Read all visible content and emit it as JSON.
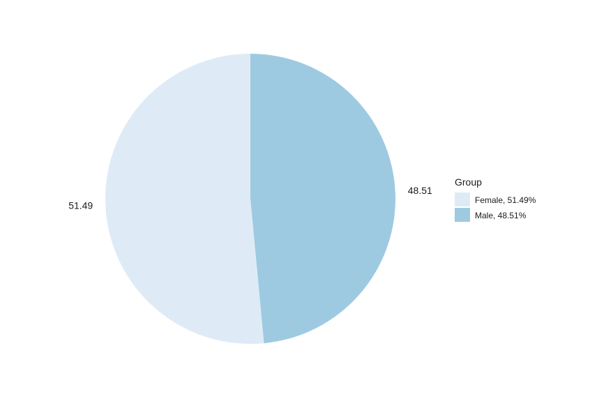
{
  "chart_data": {
    "type": "pie",
    "title": "",
    "start_angle": "12 o'clock",
    "direction": "clockwise",
    "slices": [
      {
        "name": "Male",
        "value": 48.51,
        "label": "48.51",
        "legend_label": "Male, 48.51%",
        "color": "#9ecae1"
      },
      {
        "name": "Female",
        "value": 51.49,
        "label": "51.49",
        "legend_label": "Female, 51.49%",
        "color": "#deebf7"
      }
    ],
    "legend": {
      "title": "Group",
      "placement": "right",
      "order": [
        "Female",
        "Male"
      ]
    }
  }
}
